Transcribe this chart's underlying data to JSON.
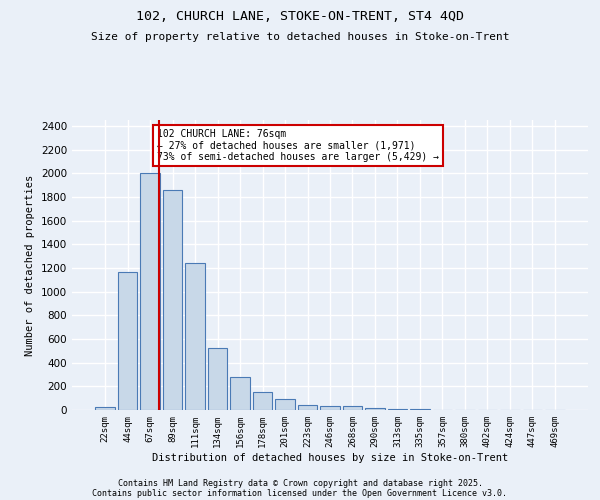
{
  "title1": "102, CHURCH LANE, STOKE-ON-TRENT, ST4 4QD",
  "title2": "Size of property relative to detached houses in Stoke-on-Trent",
  "xlabel": "Distribution of detached houses by size in Stoke-on-Trent",
  "ylabel": "Number of detached properties",
  "bar_labels": [
    "22sqm",
    "44sqm",
    "67sqm",
    "89sqm",
    "111sqm",
    "134sqm",
    "156sqm",
    "178sqm",
    "201sqm",
    "223sqm",
    "246sqm",
    "268sqm",
    "290sqm",
    "313sqm",
    "335sqm",
    "357sqm",
    "380sqm",
    "402sqm",
    "424sqm",
    "447sqm",
    "469sqm"
  ],
  "bar_values": [
    25,
    1170,
    2000,
    1860,
    1240,
    520,
    275,
    155,
    90,
    45,
    38,
    38,
    20,
    8,
    5,
    3,
    2,
    1,
    1,
    1,
    1
  ],
  "bar_color": "#c8d8e8",
  "bar_edge_color": "#4a7ab5",
  "annotation_text": "102 CHURCH LANE: 76sqm\n← 27% of detached houses are smaller (1,971)\n73% of semi-detached houses are larger (5,429) →",
  "annotation_box_color": "#ffffff",
  "annotation_box_edge": "#cc0000",
  "marker_line_color": "#cc0000",
  "ylim": [
    0,
    2450
  ],
  "yticks": [
    0,
    200,
    400,
    600,
    800,
    1000,
    1200,
    1400,
    1600,
    1800,
    2000,
    2200,
    2400
  ],
  "footer1": "Contains HM Land Registry data © Crown copyright and database right 2025.",
  "footer2": "Contains public sector information licensed under the Open Government Licence v3.0.",
  "bg_color": "#eaf0f8",
  "grid_color": "#ffffff"
}
